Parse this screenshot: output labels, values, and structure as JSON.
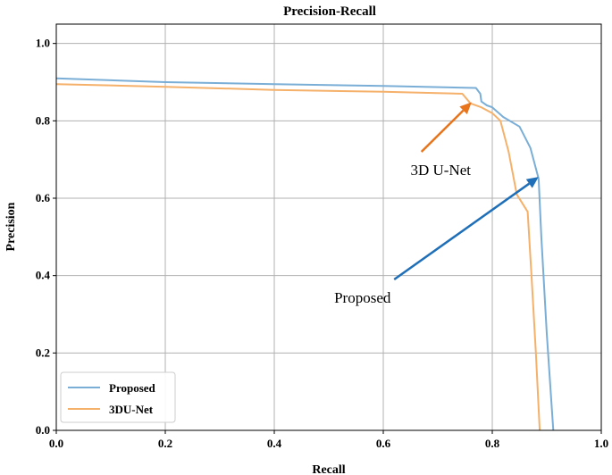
{
  "chart_data": {
    "type": "line",
    "title": "Precision-Recall",
    "xlabel": "Recall",
    "ylabel": "Precision",
    "xlim": [
      0,
      1
    ],
    "ylim": [
      0,
      1.05
    ],
    "xticks": [
      0.0,
      0.2,
      0.4,
      0.6,
      0.8,
      1.0
    ],
    "yticks": [
      0.0,
      0.2,
      0.4,
      0.6,
      0.8,
      1.0
    ],
    "xtick_labels": [
      "0.0",
      "0.2",
      "0.4",
      "0.6",
      "0.8",
      "1.0"
    ],
    "ytick_labels": [
      "0.0",
      "0.2",
      "0.4",
      "0.6",
      "0.8",
      "1.0"
    ],
    "grid": true,
    "legend_position": "lower-left",
    "series": [
      {
        "name": "Proposed",
        "color": "#7aaed6",
        "x": [
          0.0,
          0.2,
          0.4,
          0.6,
          0.77,
          0.778,
          0.78,
          0.79,
          0.8,
          0.82,
          0.85,
          0.87,
          0.885,
          0.89,
          0.9,
          0.912
        ],
        "y": [
          0.91,
          0.9,
          0.895,
          0.89,
          0.885,
          0.87,
          0.85,
          0.84,
          0.835,
          0.81,
          0.785,
          0.73,
          0.65,
          0.5,
          0.25,
          0.0
        ]
      },
      {
        "name": "3DU-Net",
        "color": "#f5b06a",
        "x": [
          0.0,
          0.2,
          0.4,
          0.6,
          0.745,
          0.76,
          0.78,
          0.8,
          0.815,
          0.83,
          0.845,
          0.865,
          0.872,
          0.88,
          0.887
        ],
        "y": [
          0.895,
          0.888,
          0.88,
          0.875,
          0.87,
          0.845,
          0.835,
          0.82,
          0.8,
          0.72,
          0.61,
          0.565,
          0.4,
          0.2,
          0.0
        ]
      }
    ],
    "annotations": [
      {
        "text": "3D U-Net",
        "arrow_color": "#e8741c",
        "from": [
          0.67,
          0.72
        ],
        "to": [
          0.762,
          0.848
        ],
        "text_at": [
          0.65,
          0.66
        ]
      },
      {
        "text": "Proposed",
        "arrow_color": "#1f6fb8",
        "from": [
          0.62,
          0.39
        ],
        "to": [
          0.885,
          0.655
        ],
        "text_at": [
          0.51,
          0.33
        ]
      }
    ]
  }
}
